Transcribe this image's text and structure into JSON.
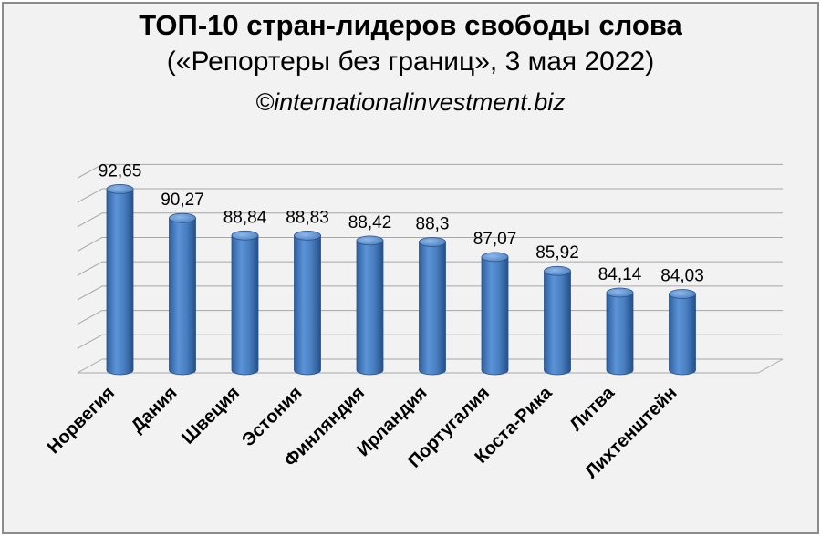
{
  "chart_data": {
    "type": "bar",
    "title": "ТОП-10 стран-лидеров свободы слова",
    "subtitle": "(«Репортеры без границ», 3 мая 2022)",
    "source": "©internationalinvestment.biz",
    "categories": [
      "Норвегия",
      "Дания",
      "Швеция",
      "Эстония",
      "Финляндия",
      "Ирландия",
      "Португалия",
      "Коста-Рика",
      "Литва",
      "Лихтенштейн"
    ],
    "values": [
      92.65,
      90.27,
      88.84,
      88.83,
      88.42,
      88.3,
      87.07,
      85.92,
      84.14,
      84.03
    ],
    "value_labels": [
      "92,65",
      "90,27",
      "88,84",
      "88,83",
      "88,42",
      "88,3",
      "87,07",
      "85,92",
      "84,14",
      "84,03"
    ],
    "ylim": [
      78,
      95
    ],
    "grid": true,
    "bar_color": "#4a7fc1"
  }
}
